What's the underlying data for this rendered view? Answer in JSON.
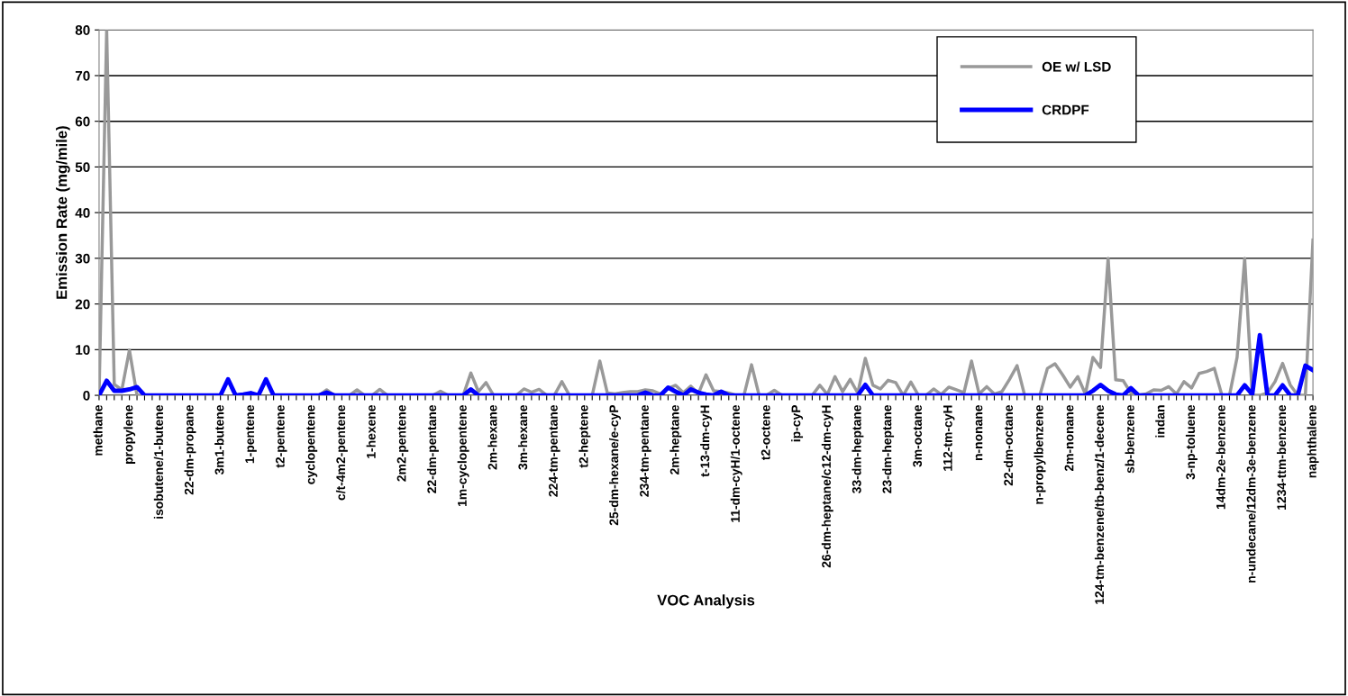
{
  "chart_data": {
    "type": "line",
    "xlabel": "VOC Analysis",
    "ylabel": "Emission Rate (mg/mile)",
    "categories": [
      "methane",
      null,
      null,
      null,
      "propylene",
      null,
      null,
      null,
      "isobutene/1-butene",
      null,
      null,
      null,
      "22-dm-propane",
      null,
      null,
      null,
      "3m1-butene",
      null,
      null,
      null,
      "1-pentene",
      null,
      null,
      null,
      "t2-pentene",
      null,
      null,
      null,
      "cyclopentene",
      null,
      null,
      null,
      "c/t-4m2-pentene",
      null,
      null,
      null,
      "1-hexene",
      null,
      null,
      null,
      "2m2-pentene",
      null,
      null,
      null,
      "22-dm-pentane",
      null,
      null,
      null,
      "1m-cyclopentene",
      null,
      null,
      null,
      "2m-hexane",
      null,
      null,
      null,
      "3m-hexane",
      null,
      null,
      null,
      "224-tm-pentane",
      null,
      null,
      null,
      "t2-heptene",
      null,
      null,
      null,
      "25-dm-hexane/e-cyP",
      null,
      null,
      null,
      "234-tm-pentane",
      null,
      null,
      null,
      "2m-heptane",
      null,
      null,
      null,
      "t-13-dm-cyH",
      null,
      null,
      null,
      "11-dm-cyH/1-octene",
      null,
      null,
      null,
      "t2-octene",
      null,
      null,
      null,
      "ip-cyP",
      null,
      null,
      null,
      "26-dm-heptane/c12-dm-cyH",
      null,
      null,
      null,
      "33-dm-heptane",
      null,
      null,
      null,
      "23-dm-heptane",
      null,
      null,
      null,
      "3m-octane",
      null,
      null,
      null,
      "112-tm-cyH",
      null,
      null,
      null,
      "n-nonane",
      null,
      null,
      null,
      "22-dm-octane",
      null,
      null,
      null,
      "n-propylbenzene",
      null,
      null,
      null,
      "2m-nonane",
      null,
      null,
      null,
      "124-tm-benzene/tb-benz/1-decene",
      null,
      null,
      null,
      "sb-benzene",
      null,
      null,
      null,
      "indan",
      null,
      null,
      null,
      "3-np-toluene",
      null,
      null,
      null,
      "14dm-2e-benzene",
      null,
      null,
      null,
      "n-undecane/12dm-3e-benzene",
      null,
      null,
      null,
      "1234-ttm-benzene",
      null,
      null,
      null,
      "naphthalene"
    ],
    "series": [
      {
        "name": "OE w/ LSD",
        "color": "#999999",
        "values": [
          0,
          80,
          2.4,
          1.2,
          9.9,
          0,
          0,
          0,
          0,
          0,
          0,
          0,
          0,
          0,
          0,
          0,
          0,
          null,
          0,
          0.2,
          0.5,
          0,
          null,
          0,
          0,
          0,
          0,
          0,
          0,
          0,
          1.2,
          0,
          0,
          0,
          1.2,
          0,
          0,
          1.3,
          0,
          0,
          0,
          0,
          0,
          0,
          0,
          0.9,
          0,
          0,
          0,
          4.9,
          0.8,
          2.8,
          0,
          0,
          0,
          0,
          1.4,
          0.7,
          1.3,
          0,
          0,
          3.0,
          0,
          0,
          0,
          0,
          7.5,
          0.5,
          0.3,
          0.6,
          0.8,
          0.8,
          1.2,
          1.0,
          0.3,
          1.5,
          2.2,
          0.6,
          2.0,
          0.4,
          4.5,
          1.0,
          0.8,
          0.5,
          0,
          0,
          6.7,
          0,
          0,
          1.1,
          0,
          0,
          0,
          0,
          0,
          2.2,
          0.2,
          4.1,
          0.8,
          3.5,
          0.5,
          8.1,
          2.2,
          1.4,
          3.3,
          2.8,
          0,
          2.9,
          0,
          0,
          1.4,
          0.2,
          1.8,
          1.2,
          0.6,
          7.5,
          0.3,
          1.9,
          0.3,
          0.8,
          3.5,
          6.5,
          0,
          0,
          0,
          5.9,
          6.9,
          4.5,
          1.8,
          4.1,
          0.3,
          8.3,
          6.1,
          30,
          3.4,
          3.2,
          0.5,
          0,
          0.3,
          1.2,
          1.1,
          1.9,
          0.3,
          3.0,
          1.6,
          4.8,
          5.2,
          5.9,
          0,
          0,
          8.3,
          30,
          0,
          0,
          0.5,
          3.0,
          7.0,
          2.3,
          0,
          0,
          34
        ]
      },
      {
        "name": "CRDPF",
        "color": "#0000ff",
        "values": [
          0,
          3.2,
          1.0,
          1.0,
          1.3,
          1.8,
          0,
          0,
          0,
          0,
          0,
          0,
          0,
          0,
          0,
          0,
          0,
          3.5,
          0,
          0.2,
          0.5,
          0,
          3.5,
          0,
          0,
          0,
          0,
          0,
          0,
          0,
          0.6,
          0,
          0,
          0,
          0,
          0,
          0,
          0,
          0,
          0,
          0,
          0,
          0,
          0,
          0,
          0,
          0,
          0,
          0,
          1.3,
          0,
          0,
          0,
          0,
          0,
          0,
          0,
          0,
          0,
          0,
          0,
          0,
          0,
          0,
          0,
          0,
          0,
          0,
          0,
          0,
          0,
          0,
          0.6,
          0,
          0,
          1.7,
          0.8,
          0,
          1.3,
          0.6,
          0.2,
          0,
          0.8,
          0,
          0,
          0,
          0,
          0,
          0,
          0,
          0,
          0,
          0,
          0,
          0,
          0,
          0,
          0,
          0,
          0,
          0,
          2.3,
          0,
          0,
          0,
          0,
          0,
          0,
          0,
          0,
          0,
          0,
          0,
          0,
          0,
          0,
          0,
          0,
          0,
          0,
          0,
          0,
          0,
          0,
          0,
          0,
          0,
          0,
          0,
          0,
          0,
          1.0,
          2.3,
          1.0,
          0.2,
          0,
          1.6,
          0,
          0,
          0,
          0,
          0,
          0,
          0,
          0,
          0,
          0,
          0,
          0,
          0,
          0,
          2.2,
          0.2,
          13.2,
          0,
          0,
          2.2,
          0,
          0,
          6.5,
          5.5
        ]
      }
    ],
    "ylim": [
      0,
      80
    ],
    "yticks": [
      0,
      10,
      20,
      30,
      40,
      50,
      60,
      70,
      80
    ],
    "grid": "y",
    "legend": "top right"
  }
}
